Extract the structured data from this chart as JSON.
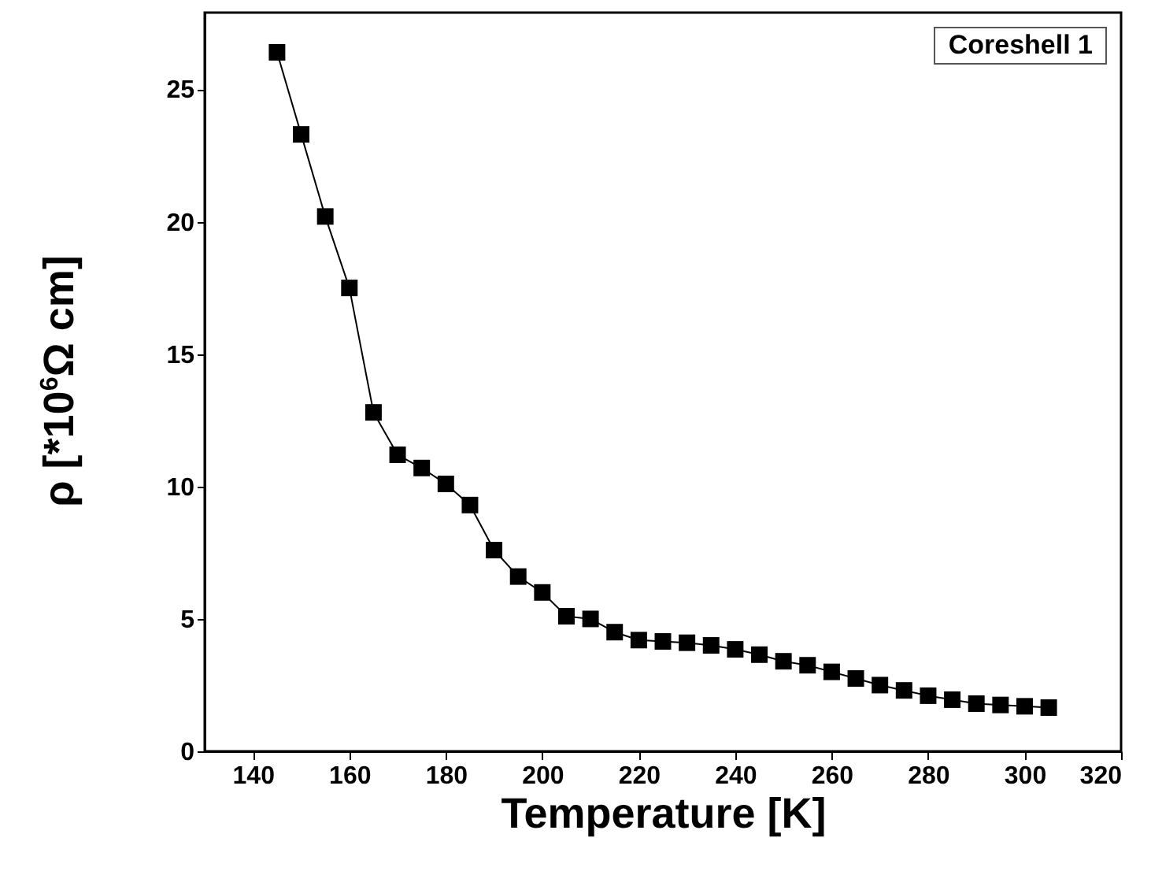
{
  "chart_data": {
    "type": "line",
    "xlabel": "Temperature [K]",
    "ylabel": "ρ [*10$^{6}$Ω cm]",
    "annotations": [
      "Coreshell 1"
    ],
    "x": [
      145,
      150,
      155,
      160,
      165,
      170,
      175,
      180,
      185,
      190,
      195,
      200,
      205,
      210,
      215,
      220,
      225,
      230,
      235,
      240,
      245,
      250,
      255,
      260,
      265,
      270,
      275,
      280,
      285,
      290,
      295,
      300,
      305
    ],
    "series": [
      {
        "color": "#000000",
        "values": [
          26.4,
          23.3,
          20.2,
          17.5,
          12.8,
          11.2,
          10.7,
          10.1,
          9.3,
          7.6,
          6.6,
          6.0,
          5.1,
          5.0,
          4.5,
          4.2,
          4.15,
          4.1,
          4.0,
          3.85,
          3.65,
          3.4,
          3.25,
          3.0,
          2.75,
          2.5,
          2.3,
          2.1,
          1.95,
          1.8,
          1.75,
          1.7,
          1.65
        ]
      }
    ],
    "xlim": [
      130,
      320
    ],
    "xticks": [
      140,
      160,
      180,
      200,
      220,
      240,
      260,
      280,
      300,
      320
    ],
    "ylim": [
      0,
      27.9
    ],
    "yticks": [
      0,
      5,
      10,
      15,
      20,
      25
    ],
    "marker": "square",
    "line_style": "solid",
    "grid": false
  }
}
